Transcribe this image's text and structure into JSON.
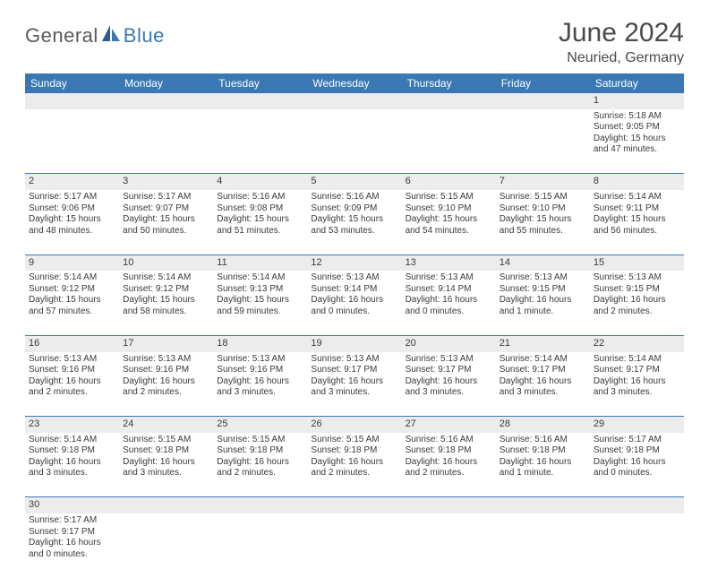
{
  "brand": {
    "part1": "General",
    "part2": "Blue"
  },
  "title": "June 2024",
  "location": "Neuried, Germany",
  "header_bg": "#3a78b5",
  "daynum_bg": "#ececec",
  "row_border": "#3a78b5",
  "weekdays": [
    "Sunday",
    "Monday",
    "Tuesday",
    "Wednesday",
    "Thursday",
    "Friday",
    "Saturday"
  ],
  "weeks": [
    [
      null,
      null,
      null,
      null,
      null,
      null,
      {
        "n": "1",
        "sr": "5:18 AM",
        "ss": "9:05 PM",
        "dl": "15 hours and 47 minutes."
      }
    ],
    [
      {
        "n": "2",
        "sr": "5:17 AM",
        "ss": "9:06 PM",
        "dl": "15 hours and 48 minutes."
      },
      {
        "n": "3",
        "sr": "5:17 AM",
        "ss": "9:07 PM",
        "dl": "15 hours and 50 minutes."
      },
      {
        "n": "4",
        "sr": "5:16 AM",
        "ss": "9:08 PM",
        "dl": "15 hours and 51 minutes."
      },
      {
        "n": "5",
        "sr": "5:16 AM",
        "ss": "9:09 PM",
        "dl": "15 hours and 53 minutes."
      },
      {
        "n": "6",
        "sr": "5:15 AM",
        "ss": "9:10 PM",
        "dl": "15 hours and 54 minutes."
      },
      {
        "n": "7",
        "sr": "5:15 AM",
        "ss": "9:10 PM",
        "dl": "15 hours and 55 minutes."
      },
      {
        "n": "8",
        "sr": "5:14 AM",
        "ss": "9:11 PM",
        "dl": "15 hours and 56 minutes."
      }
    ],
    [
      {
        "n": "9",
        "sr": "5:14 AM",
        "ss": "9:12 PM",
        "dl": "15 hours and 57 minutes."
      },
      {
        "n": "10",
        "sr": "5:14 AM",
        "ss": "9:12 PM",
        "dl": "15 hours and 58 minutes."
      },
      {
        "n": "11",
        "sr": "5:14 AM",
        "ss": "9:13 PM",
        "dl": "15 hours and 59 minutes."
      },
      {
        "n": "12",
        "sr": "5:13 AM",
        "ss": "9:14 PM",
        "dl": "16 hours and 0 minutes."
      },
      {
        "n": "13",
        "sr": "5:13 AM",
        "ss": "9:14 PM",
        "dl": "16 hours and 0 minutes."
      },
      {
        "n": "14",
        "sr": "5:13 AM",
        "ss": "9:15 PM",
        "dl": "16 hours and 1 minute."
      },
      {
        "n": "15",
        "sr": "5:13 AM",
        "ss": "9:15 PM",
        "dl": "16 hours and 2 minutes."
      }
    ],
    [
      {
        "n": "16",
        "sr": "5:13 AM",
        "ss": "9:16 PM",
        "dl": "16 hours and 2 minutes."
      },
      {
        "n": "17",
        "sr": "5:13 AM",
        "ss": "9:16 PM",
        "dl": "16 hours and 2 minutes."
      },
      {
        "n": "18",
        "sr": "5:13 AM",
        "ss": "9:16 PM",
        "dl": "16 hours and 3 minutes."
      },
      {
        "n": "19",
        "sr": "5:13 AM",
        "ss": "9:17 PM",
        "dl": "16 hours and 3 minutes."
      },
      {
        "n": "20",
        "sr": "5:13 AM",
        "ss": "9:17 PM",
        "dl": "16 hours and 3 minutes."
      },
      {
        "n": "21",
        "sr": "5:14 AM",
        "ss": "9:17 PM",
        "dl": "16 hours and 3 minutes."
      },
      {
        "n": "22",
        "sr": "5:14 AM",
        "ss": "9:17 PM",
        "dl": "16 hours and 3 minutes."
      }
    ],
    [
      {
        "n": "23",
        "sr": "5:14 AM",
        "ss": "9:18 PM",
        "dl": "16 hours and 3 minutes."
      },
      {
        "n": "24",
        "sr": "5:15 AM",
        "ss": "9:18 PM",
        "dl": "16 hours and 3 minutes."
      },
      {
        "n": "25",
        "sr": "5:15 AM",
        "ss": "9:18 PM",
        "dl": "16 hours and 2 minutes."
      },
      {
        "n": "26",
        "sr": "5:15 AM",
        "ss": "9:18 PM",
        "dl": "16 hours and 2 minutes."
      },
      {
        "n": "27",
        "sr": "5:16 AM",
        "ss": "9:18 PM",
        "dl": "16 hours and 2 minutes."
      },
      {
        "n": "28",
        "sr": "5:16 AM",
        "ss": "9:18 PM",
        "dl": "16 hours and 1 minute."
      },
      {
        "n": "29",
        "sr": "5:17 AM",
        "ss": "9:18 PM",
        "dl": "16 hours and 0 minutes."
      }
    ],
    [
      {
        "n": "30",
        "sr": "5:17 AM",
        "ss": "9:17 PM",
        "dl": "16 hours and 0 minutes."
      },
      null,
      null,
      null,
      null,
      null,
      null
    ]
  ],
  "labels": {
    "sunrise": "Sunrise:",
    "sunset": "Sunset:",
    "daylight": "Daylight:"
  }
}
